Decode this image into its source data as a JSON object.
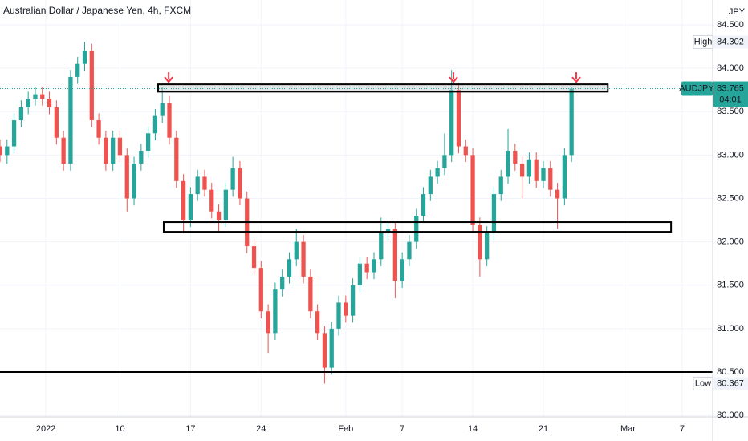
{
  "chart_data": {
    "type": "candlestick",
    "title": "Australian Dollar / Japanese Yen, 4h, FXCM",
    "currency": "JPY",
    "symbol": "AUDJPY",
    "last_price": 83.765,
    "countdown": "04:01",
    "high_label": "High",
    "high_value": 84.302,
    "low_label": "Low",
    "low_value": 80.367,
    "up_color": "#26a69a",
    "down_color": "#ef5350",
    "grid": true,
    "xlim": [
      0,
      303
    ],
    "ylim": [
      79.983,
      84.786
    ],
    "xticks": [
      {
        "value": 19.5,
        "label": "2022"
      },
      {
        "value": 51,
        "label": "10"
      },
      {
        "value": 81,
        "label": "17"
      },
      {
        "value": 111,
        "label": "24"
      },
      {
        "value": 147,
        "label": "Feb"
      },
      {
        "value": 171,
        "label": "7"
      },
      {
        "value": 201,
        "label": "14"
      },
      {
        "value": 231,
        "label": "21"
      },
      {
        "value": 267,
        "label": "Mar"
      },
      {
        "value": 290,
        "label": "7"
      }
    ],
    "yticks": [
      {
        "value": 80,
        "label": "80.000"
      },
      {
        "value": 80.5,
        "label": "80.500"
      },
      {
        "value": 81,
        "label": "81.000"
      },
      {
        "value": 81.5,
        "label": "81.500"
      },
      {
        "value": 82,
        "label": "82.000"
      },
      {
        "value": 82.5,
        "label": "82.500"
      },
      {
        "value": 83,
        "label": "83.000"
      },
      {
        "value": 83.5,
        "label": "83.500"
      },
      {
        "value": 84,
        "label": "84.000"
      },
      {
        "value": 84.5,
        "label": "84.500"
      }
    ],
    "x": [
      0,
      3,
      6,
      9,
      12,
      15,
      18,
      21,
      24,
      27,
      30,
      33,
      36,
      39,
      42,
      45,
      48,
      51,
      54,
      57,
      60,
      63,
      66,
      69,
      72,
      75,
      78,
      81,
      84,
      87,
      90,
      93,
      96,
      99,
      102,
      105,
      108,
      111,
      114,
      117,
      120,
      123,
      126,
      129,
      132,
      135,
      138,
      141,
      144,
      147,
      150,
      153,
      156,
      159,
      162,
      165,
      168,
      171,
      174,
      177,
      180,
      183,
      186,
      189,
      192,
      195,
      198,
      201,
      204,
      207,
      210,
      213,
      216,
      219,
      222,
      225,
      228,
      231,
      234,
      237,
      240,
      243
    ],
    "open": [
      83.1,
      83.0,
      83.1,
      83.4,
      83.55,
      83.65,
      83.7,
      83.65,
      83.55,
      83.2,
      82.9,
      83.9,
      84.05,
      84.2,
      83.4,
      83.2,
      82.9,
      83.2,
      83.0,
      82.5,
      82.9,
      83.05,
      83.25,
      83.45,
      83.6,
      83.2,
      82.7,
      82.25,
      82.55,
      82.75,
      82.6,
      82.35,
      82.25,
      82.6,
      82.85,
      82.5,
      81.95,
      81.7,
      81.2,
      80.95,
      81.45,
      81.6,
      81.8,
      82.0,
      81.6,
      81.2,
      80.95,
      80.55,
      81.0,
      81.3,
      81.15,
      81.5,
      81.75,
      81.65,
      81.8,
      82.1,
      82.15,
      81.55,
      81.8,
      82.0,
      82.3,
      82.55,
      82.75,
      82.85,
      83.0,
      83.75,
      83.1,
      83.0,
      82.2,
      81.8,
      82.1,
      82.55,
      82.75,
      83.05,
      82.9,
      82.75,
      82.95,
      82.7,
      82.85,
      82.6,
      82.5,
      83.0
    ],
    "high": [
      83.18,
      83.18,
      83.48,
      83.63,
      83.73,
      83.78,
      83.78,
      83.73,
      83.63,
      83.28,
      83.98,
      84.13,
      84.302,
      84.28,
      83.48,
      83.28,
      83.28,
      83.28,
      83.08,
      82.98,
      83.13,
      83.33,
      83.53,
      83.78,
      83.68,
      83.28,
      82.78,
      82.63,
      82.83,
      82.83,
      82.68,
      82.43,
      82.68,
      82.98,
      82.93,
      82.58,
      82.03,
      81.78,
      81.28,
      81.53,
      81.68,
      81.88,
      82.15,
      82.08,
      81.68,
      81.28,
      81.03,
      81.08,
      81.38,
      81.38,
      81.58,
      81.83,
      81.83,
      81.88,
      82.28,
      82.23,
      82.23,
      81.88,
      82.08,
      82.38,
      82.63,
      82.83,
      82.93,
      83.25,
      83.98,
      83.83,
      83.18,
      83.08,
      82.28,
      82.18,
      82.63,
      82.83,
      83.3,
      83.13,
      82.98,
      83.03,
      83.03,
      82.93,
      82.93,
      82.68,
      83.08,
      83.78
    ],
    "low": [
      82.92,
      82.9,
      83.02,
      83.32,
      83.47,
      83.57,
      83.57,
      83.47,
      83.12,
      82.82,
      82.82,
      83.82,
      83.97,
      83.32,
      83.12,
      82.82,
      82.82,
      82.92,
      82.35,
      82.42,
      82.82,
      82.97,
      83.17,
      83.37,
      83.12,
      82.62,
      82.1,
      82.17,
      82.47,
      82.52,
      82.27,
      82.12,
      82.17,
      82.52,
      82.42,
      81.87,
      81.62,
      81.12,
      80.72,
      80.87,
      81.37,
      81.52,
      81.72,
      81.52,
      81.12,
      80.87,
      80.367,
      80.47,
      80.92,
      81.07,
      81.07,
      81.42,
      81.57,
      81.57,
      81.72,
      82.02,
      81.35,
      81.47,
      81.72,
      81.92,
      82.22,
      82.47,
      82.67,
      82.77,
      82.92,
      83.02,
      82.92,
      82.12,
      81.6,
      81.72,
      82.02,
      82.47,
      82.67,
      82.82,
      82.5,
      82.67,
      82.62,
      82.62,
      82.52,
      82.15,
      82.42,
      82.92
    ],
    "close": [
      83.0,
      83.1,
      83.4,
      83.55,
      83.65,
      83.7,
      83.65,
      83.55,
      83.2,
      82.9,
      83.9,
      84.05,
      84.2,
      83.4,
      83.2,
      82.9,
      83.2,
      83.0,
      82.5,
      82.9,
      83.05,
      83.25,
      83.45,
      83.6,
      83.2,
      82.7,
      82.25,
      82.55,
      82.75,
      82.6,
      82.35,
      82.25,
      82.6,
      82.85,
      82.5,
      81.95,
      81.7,
      81.2,
      80.95,
      81.45,
      81.6,
      81.8,
      82.0,
      81.6,
      81.2,
      80.95,
      80.55,
      81.0,
      81.3,
      81.15,
      81.5,
      81.75,
      81.65,
      81.8,
      82.1,
      82.15,
      81.55,
      81.8,
      82.0,
      82.3,
      82.55,
      82.75,
      82.85,
      83.0,
      83.75,
      83.1,
      83.0,
      82.2,
      81.8,
      82.1,
      82.55,
      82.75,
      83.05,
      82.9,
      82.75,
      82.95,
      82.7,
      82.85,
      82.6,
      82.5,
      83.0,
      83.765
    ],
    "zones": [
      {
        "x": [
          67.2,
          258.4
        ],
        "y": [
          83.73,
          83.815
        ]
      },
      {
        "x": [
          69.6,
          285.3
        ],
        "y": [
          82.116,
          82.227
        ]
      }
    ],
    "hlines": [
      80.5
    ],
    "arrows_x": [
      71.7,
      192.8,
      245
    ]
  }
}
